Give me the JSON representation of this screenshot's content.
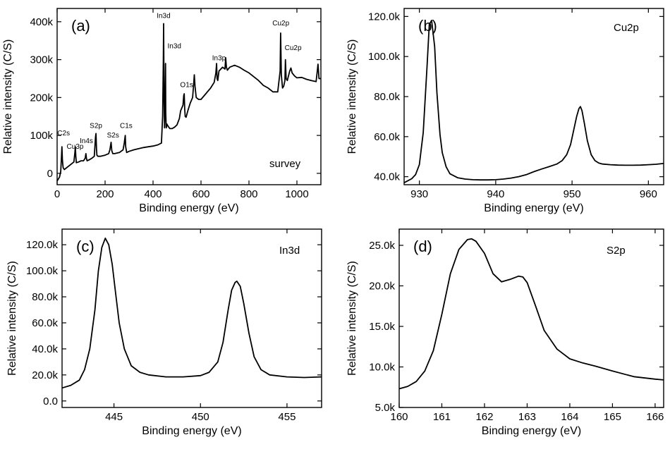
{
  "chart_data": [
    {
      "type": "line",
      "panel_label": "(a)",
      "inner_label": "survey",
      "xlabel": "Binding energy (eV)",
      "ylabel": "Relative intensity (C/S)",
      "xlim": [
        0,
        1100
      ],
      "ylim": [
        -30000,
        435000
      ],
      "x_ticks": [
        0,
        200,
        400,
        600,
        800,
        1000
      ],
      "x_tick_labels": [
        "0",
        "200",
        "400",
        "600",
        "800",
        "1000"
      ],
      "y_ticks": [
        0,
        100000,
        200000,
        300000,
        400000
      ],
      "y_tick_labels": [
        "0",
        "100k",
        "200k",
        "300k",
        "400k"
      ],
      "series": [
        {
          "x": [
            0,
            10,
            15,
            18,
            20,
            22,
            25,
            30,
            40,
            60,
            70,
            74,
            76,
            78,
            80,
            90,
            100,
            110,
            117,
            120,
            122,
            125,
            135,
            145,
            155,
            160,
            162,
            164,
            166,
            170,
            180,
            200,
            215,
            220,
            225,
            228,
            232,
            240,
            260,
            275,
            280,
            284,
            286,
            290,
            300,
            320,
            340,
            360,
            380,
            400,
            420,
            435,
            440,
            443,
            444,
            446,
            448,
            450,
            452,
            453,
            455,
            458,
            462,
            470,
            480,
            490,
            500,
            510,
            515,
            525,
            528,
            530,
            532,
            534,
            538,
            545,
            555,
            565,
            570,
            572,
            575,
            580,
            590,
            600,
            620,
            640,
            655,
            662,
            665,
            667,
            670,
            675,
            690,
            700,
            703,
            706,
            710,
            720,
            740,
            760,
            780,
            800,
            820,
            840,
            860,
            880,
            900,
            920,
            930,
            932,
            935,
            940,
            945,
            950,
            952,
            955,
            960,
            970,
            975,
            980,
            990,
            1000,
            1020,
            1040,
            1060,
            1080,
            1085,
            1088,
            1092,
            1100
          ],
          "y": [
            -20000,
            -10000,
            5000,
            40000,
            70000,
            35000,
            15000,
            10000,
            15000,
            25000,
            30000,
            55000,
            70000,
            45000,
            28000,
            30000,
            33000,
            33000,
            40000,
            52000,
            40000,
            33000,
            36000,
            40000,
            45000,
            95000,
            105000,
            65000,
            48000,
            45000,
            45000,
            48000,
            52000,
            62000,
            82000,
            60000,
            52000,
            52000,
            55000,
            62000,
            80000,
            100000,
            70000,
            55000,
            58000,
            62000,
            65000,
            68000,
            70000,
            72000,
            75000,
            80000,
            150000,
            300000,
            395000,
            200000,
            120000,
            180000,
            290000,
            160000,
            120000,
            130000,
            125000,
            118000,
            118000,
            122000,
            128000,
            145000,
            165000,
            180000,
            205000,
            210000,
            170000,
            150000,
            148000,
            165000,
            185000,
            200000,
            240000,
            260000,
            230000,
            200000,
            195000,
            195000,
            210000,
            225000,
            240000,
            265000,
            290000,
            250000,
            245000,
            270000,
            280000,
            275000,
            305000,
            280000,
            272000,
            280000,
            285000,
            280000,
            272000,
            265000,
            255000,
            245000,
            232000,
            225000,
            215000,
            215000,
            270000,
            370000,
            260000,
            225000,
            230000,
            245000,
            300000,
            250000,
            245000,
            270000,
            278000,
            265000,
            257000,
            252000,
            253000,
            248000,
            245000,
            242000,
            270000,
            288000,
            250000,
            250000
          ]
        }
      ],
      "annotations": [
        {
          "text": "C2s",
          "x": 27,
          "y": 100000
        },
        {
          "text": "Cu3p",
          "x": 75,
          "y": 65000
        },
        {
          "text": "In4s",
          "x": 122,
          "y": 80000
        },
        {
          "text": "S2p",
          "x": 162,
          "y": 120000
        },
        {
          "text": "S2s",
          "x": 233,
          "y": 95000
        },
        {
          "text": "C1s",
          "x": 288,
          "y": 120000
        },
        {
          "text": "In3d",
          "x": 444,
          "y": 410000
        },
        {
          "text": "In3d",
          "x": 489,
          "y": 330000
        },
        {
          "text": "O1s",
          "x": 540,
          "y": 228000
        },
        {
          "text": "In3p",
          "x": 675,
          "y": 298000
        },
        {
          "text": "Cu2p",
          "x": 933,
          "y": 390000
        },
        {
          "text": "Cu2p",
          "x": 984,
          "y": 325000
        }
      ]
    },
    {
      "type": "line",
      "panel_label": "(b)",
      "inner_label": "Cu2p",
      "xlabel": "Binding energy (eV)",
      "ylabel": "Relative intensity (C/S)",
      "xlim": [
        928,
        962
      ],
      "ylim": [
        36000,
        124000
      ],
      "x_ticks": [
        930,
        940,
        950,
        960
      ],
      "x_tick_labels": [
        "930",
        "940",
        "950",
        "960"
      ],
      "y_ticks": [
        40000,
        60000,
        80000,
        100000,
        120000
      ],
      "y_tick_labels": [
        "40.0k",
        "60.0k",
        "80.0k",
        "100.0k",
        "120.0k"
      ],
      "series": [
        {
          "x": [
            928,
            929,
            929.5,
            930,
            930.5,
            931,
            931.3,
            931.6,
            932,
            932.3,
            932.7,
            933,
            933.5,
            934,
            935,
            936,
            937,
            938,
            939,
            940,
            941,
            942,
            943,
            944,
            945,
            946,
            947,
            948,
            948.7,
            949.3,
            949.8,
            950.2,
            950.6,
            950.9,
            951.1,
            951.3,
            951.6,
            952,
            952.5,
            953,
            953.5,
            954,
            955,
            956,
            957,
            958,
            959,
            960,
            961,
            962
          ],
          "y": [
            37000,
            39000,
            41000,
            46000,
            62000,
            95000,
            116000,
            118000,
            105000,
            82000,
            61000,
            52000,
            45000,
            41500,
            39500,
            38800,
            38500,
            38400,
            38400,
            38500,
            38800,
            39300,
            40000,
            41000,
            42500,
            43800,
            45000,
            46300,
            48000,
            51000,
            56000,
            63000,
            70000,
            74000,
            75000,
            73000,
            67000,
            58000,
            51000,
            48000,
            46800,
            46300,
            46000,
            45800,
            45700,
            45700,
            45800,
            46000,
            46200,
            46600
          ]
        }
      ]
    },
    {
      "type": "line",
      "panel_label": "(c)",
      "inner_label": "In3d",
      "xlabel": "Binding energy (eV)",
      "ylabel": "Relative intensity (C/S)",
      "xlim": [
        442,
        457
      ],
      "ylim": [
        -5000,
        132000
      ],
      "x_ticks": [
        445,
        450,
        455
      ],
      "x_tick_labels": [
        "445",
        "450",
        "455"
      ],
      "y_ticks": [
        0,
        20000,
        40000,
        60000,
        80000,
        100000,
        120000
      ],
      "y_tick_labels": [
        "0.0",
        "20.0k",
        "40.0k",
        "60.0k",
        "80.0k",
        "100.0k",
        "120.0k"
      ],
      "series": [
        {
          "x": [
            442,
            442.5,
            443,
            443.3,
            443.6,
            443.9,
            444.1,
            444.3,
            444.5,
            444.7,
            444.9,
            445.1,
            445.3,
            445.6,
            446,
            446.5,
            447,
            448,
            449,
            450,
            450.5,
            451,
            451.3,
            451.6,
            451.8,
            452,
            452.1,
            452.3,
            452.5,
            452.8,
            453.1,
            453.5,
            454,
            455,
            456,
            457
          ],
          "y": [
            10000,
            12000,
            16000,
            24000,
            40000,
            70000,
            100000,
            118000,
            125000,
            120000,
            105000,
            82000,
            60000,
            40000,
            27000,
            22000,
            20000,
            18500,
            18500,
            19500,
            22000,
            30000,
            45000,
            70000,
            85000,
            91000,
            92000,
            88000,
            75000,
            52000,
            34000,
            24000,
            20000,
            18500,
            18000,
            18500
          ]
        }
      ]
    },
    {
      "type": "line",
      "panel_label": "(d)",
      "inner_label": "S2p",
      "xlabel": "Binding energy (eV)",
      "ylabel": "Relative intensity (C/S)",
      "xlim": [
        160,
        166.2
      ],
      "ylim": [
        5000,
        27000
      ],
      "x_ticks": [
        160,
        161,
        162,
        163,
        164,
        165,
        166
      ],
      "x_tick_labels": [
        "160",
        "161",
        "162",
        "163",
        "164",
        "165",
        "166"
      ],
      "y_ticks": [
        5000,
        10000,
        15000,
        20000,
        25000
      ],
      "y_tick_labels": [
        "5.0k",
        "10.0k",
        "15.0k",
        "20.0k",
        "25.0k"
      ],
      "series": [
        {
          "x": [
            160,
            160.2,
            160.4,
            160.6,
            160.8,
            161,
            161.2,
            161.4,
            161.6,
            161.7,
            161.8,
            162,
            162.2,
            162.4,
            162.6,
            162.8,
            162.9,
            163,
            163.2,
            163.4,
            163.7,
            164,
            164.3,
            164.6,
            165,
            165.5,
            166,
            166.2
          ],
          "y": [
            7300,
            7600,
            8200,
            9500,
            12000,
            16500,
            21500,
            24500,
            25700,
            25800,
            25500,
            24000,
            21500,
            20500,
            20800,
            21200,
            21100,
            20400,
            17500,
            14500,
            12200,
            11000,
            10500,
            10100,
            9500,
            8800,
            8500,
            8400
          ]
        }
      ]
    }
  ]
}
